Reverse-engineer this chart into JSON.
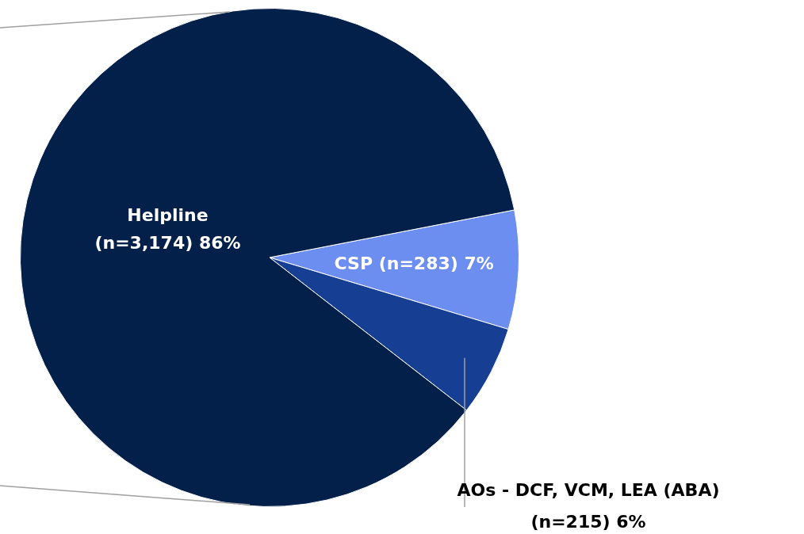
{
  "chart_data": {
    "type": "pie",
    "categories": [
      "CSP",
      "AOs - DCF, VCM, LEA (ABA)",
      "Helpline"
    ],
    "values": [
      283,
      215,
      3174
    ],
    "colors": [
      "#6b8ef0",
      "#163f94",
      "#03204a"
    ],
    "value_labels": [
      "(n=283) 7%",
      "(n=215) 6%",
      "(n=3,174) 86%"
    ],
    "legend": false
  }
}
